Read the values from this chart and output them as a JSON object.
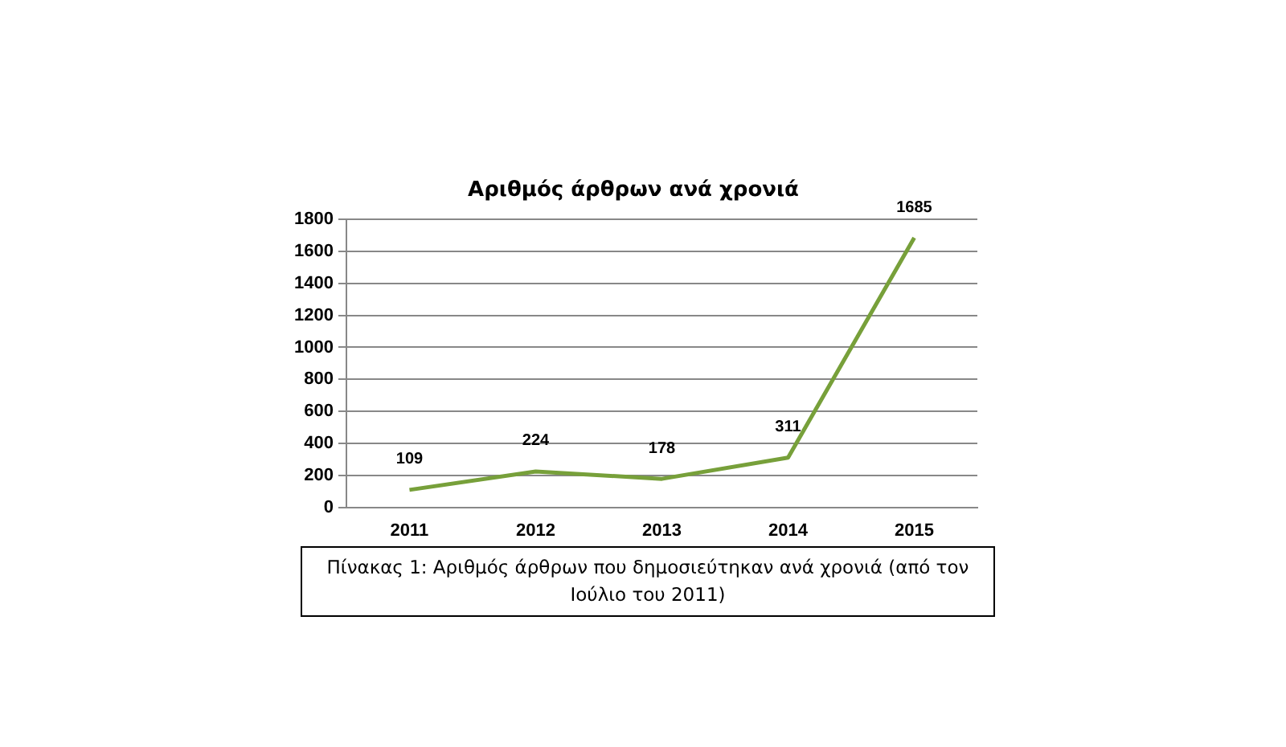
{
  "chart_data": {
    "type": "line",
    "title": "Αριθμός άρθρων ανά χρονιά",
    "categories": [
      "2011",
      "2012",
      "2013",
      "2014",
      "2015"
    ],
    "series": [
      {
        "color": "#77a03a",
        "values": [
          109,
          224,
          178,
          311,
          1685
        ]
      }
    ],
    "ylim": [
      0,
      1800
    ],
    "yticks": [
      0,
      200,
      400,
      600,
      800,
      1000,
      1200,
      1400,
      1600,
      1800
    ],
    "grid": "y",
    "legend": false,
    "marker": "none",
    "line_style": "solid",
    "data_labels": true,
    "annotations": [
      "Πίνακας 1: Αριθμός άρθρων που δημοσιεύτηκαν ανά χρονιά (από τον Ιούλιο του 2011)"
    ]
  }
}
